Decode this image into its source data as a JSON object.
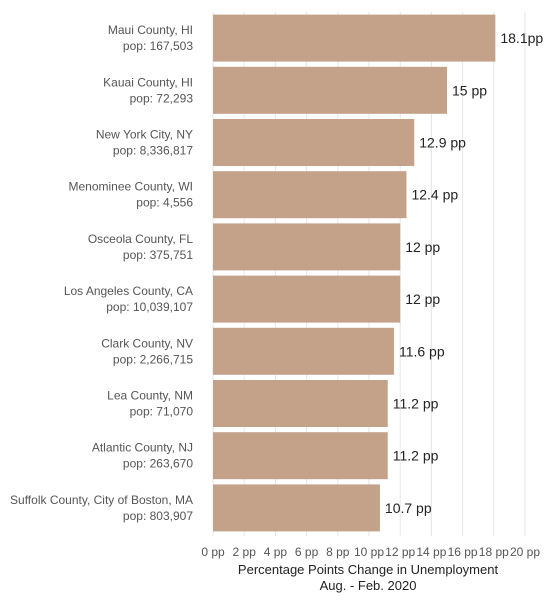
{
  "chart_data": {
    "type": "bar",
    "orientation": "horizontal",
    "categories": [
      {
        "name": "Maui County, HI",
        "pop": "pop: 167,503"
      },
      {
        "name": "Kauai County, HI",
        "pop": "pop: 72,293"
      },
      {
        "name": "New York City, NY",
        "pop": "pop: 8,336,817"
      },
      {
        "name": "Menominee County, WI",
        "pop": "pop: 4,556"
      },
      {
        "name": "Osceola County, FL",
        "pop": "pop: 375,751"
      },
      {
        "name": "Los Angeles County, CA",
        "pop": "pop: 10,039,107"
      },
      {
        "name": "Clark County, NV",
        "pop": "pop: 2,266,715"
      },
      {
        "name": "Lea County, NM",
        "pop": "pop: 71,070"
      },
      {
        "name": "Atlantic County, NJ",
        "pop": "pop: 263,670"
      },
      {
        "name": "Suffolk County, City of Boston, MA",
        "pop": "pop: 803,907"
      }
    ],
    "values": [
      18.1,
      15,
      12.9,
      12.4,
      12,
      12,
      11.6,
      11.2,
      11.2,
      10.7
    ],
    "value_labels": [
      "18.1pp",
      "15 pp",
      "12.9 pp",
      "12.4 pp",
      "12 pp",
      "12 pp",
      "11.6 pp",
      "11.2 pp",
      "11.2 pp",
      "10.7 pp"
    ],
    "xlim": [
      0,
      20
    ],
    "xticks": [
      0,
      2,
      4,
      6,
      8,
      10,
      12,
      14,
      16,
      18,
      20
    ],
    "xtick_labels": [
      "0 pp",
      "2 pp",
      "4 pp",
      "6 pp",
      "8 pp",
      "10 pp",
      "12 pp",
      "14 pp",
      "16 pp",
      "18 pp",
      "20 pp"
    ],
    "xlabel": "Percentage Points Change in Unemployment",
    "xlabel2": "Aug. - Feb. 2020",
    "title": "",
    "ylabel": "",
    "grid": true,
    "legend": "none",
    "bar_color": "#c4a28a"
  }
}
